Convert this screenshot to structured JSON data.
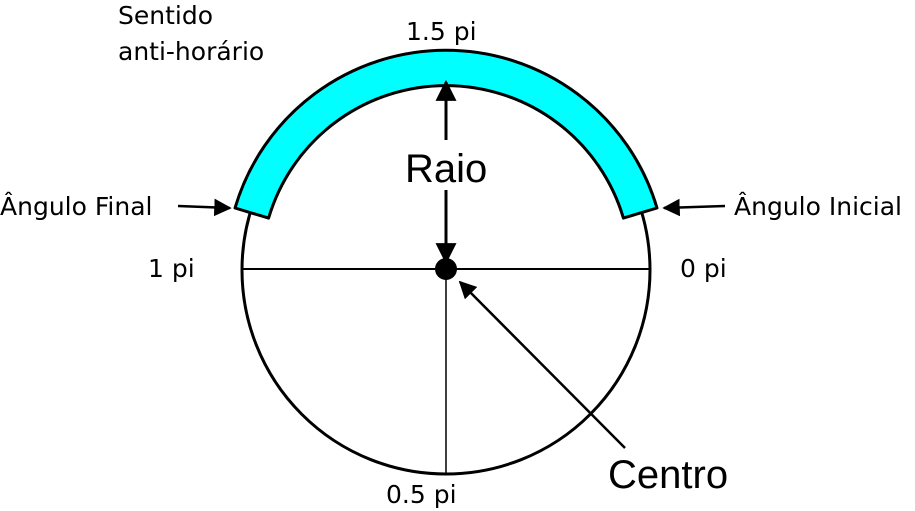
{
  "diagram": {
    "direction_label_line1": "Sentido",
    "direction_label_line2": "anti-horário",
    "top_angle_label": "1.5 pi",
    "left_angle_label": "1 pi",
    "right_angle_label": "0 pi",
    "bottom_angle_label": "0.5 pi",
    "final_angle_label": "Ângulo Final",
    "initial_angle_label": "Ângulo Inicial",
    "radius_label": "Raio",
    "center_label": "Centro"
  },
  "colors": {
    "arc_fill": "#00FFFF",
    "stroke": "#000000",
    "background": "#FFFFFF"
  }
}
